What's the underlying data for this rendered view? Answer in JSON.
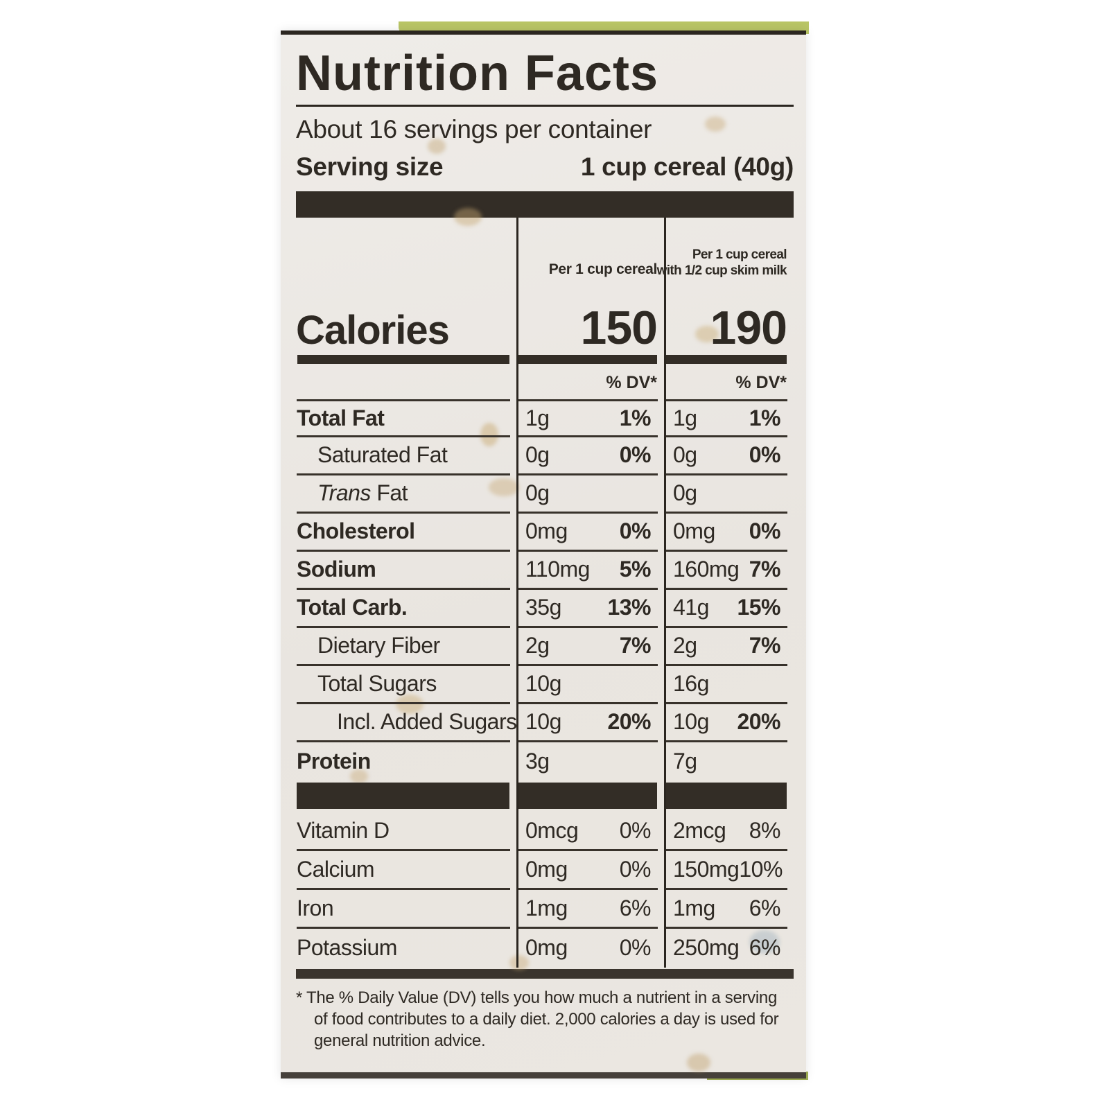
{
  "label": {
    "title": "Nutrition Facts",
    "servings_per_container": "About 16 servings per container",
    "serving_size_label": "Serving size",
    "serving_size_value": "1 cup cereal (40g)",
    "columns": {
      "col1_header": "Per 1 cup cereal",
      "col2_header_line1": "Per 1 cup cereal",
      "col2_header_line2": "with 1/2 cup skim milk",
      "dv_header": "% DV*"
    },
    "calories": {
      "label": "Calories",
      "col1_value": "150",
      "col2_value": "190"
    },
    "nutrients": [
      {
        "prefix": "",
        "label": "Total Fat",
        "col1_amount": "1g",
        "col1_dv": "1%",
        "col2_amount": "1g",
        "col2_dv": "1%"
      },
      {
        "prefix": "",
        "label": "Saturated Fat",
        "col1_amount": "0g",
        "col1_dv": "0%",
        "col2_amount": "0g",
        "col2_dv": "0%"
      },
      {
        "prefix": "Trans ",
        "label": "Fat",
        "col1_amount": "0g",
        "col1_dv": "",
        "col2_amount": "0g",
        "col2_dv": ""
      },
      {
        "prefix": "",
        "label": "Cholesterol",
        "col1_amount": "0mg",
        "col1_dv": "0%",
        "col2_amount": "0mg",
        "col2_dv": "0%"
      },
      {
        "prefix": "",
        "label": "Sodium",
        "col1_amount": "110mg",
        "col1_dv": "5%",
        "col2_amount": "160mg",
        "col2_dv": "7%"
      },
      {
        "prefix": "",
        "label": "Total Carb.",
        "col1_amount": "35g",
        "col1_dv": "13%",
        "col2_amount": "41g",
        "col2_dv": "15%"
      },
      {
        "prefix": "",
        "label": "Dietary Fiber",
        "col1_amount": "2g",
        "col1_dv": "7%",
        "col2_amount": "2g",
        "col2_dv": "7%"
      },
      {
        "prefix": "",
        "label": "Total Sugars",
        "col1_amount": "10g",
        "col1_dv": "",
        "col2_amount": "16g",
        "col2_dv": ""
      },
      {
        "prefix": "",
        "label": "Incl. Added Sugars",
        "col1_amount": "10g",
        "col1_dv": "20%",
        "col2_amount": "10g",
        "col2_dv": "20%"
      },
      {
        "prefix": "",
        "label": "Protein",
        "col1_amount": "3g",
        "col1_dv": "",
        "col2_amount": "7g",
        "col2_dv": ""
      }
    ],
    "vitamins": [
      {
        "label": "Vitamin D",
        "col1_amount": "0mcg",
        "col1_dv": "0%",
        "col2_amount": "2mcg",
        "col2_dv": "8%"
      },
      {
        "label": "Calcium",
        "col1_amount": "0mg",
        "col1_dv": "0%",
        "col2_amount": "150mg",
        "col2_dv": "10%"
      },
      {
        "label": "Iron",
        "col1_amount": "1mg",
        "col1_dv": "6%",
        "col2_amount": "1mg",
        "col2_dv": "6%"
      },
      {
        "label": "Potassium",
        "col1_amount": "0mg",
        "col1_dv": "0%",
        "col2_amount": "250mg",
        "col2_dv": "6%"
      }
    ],
    "footnote": "* The % Daily Value (DV) tells you how much a nutrient in a serving of food contributes to a daily diet. 2,000 calories a day is used for general nutrition advice."
  },
  "colors": {
    "ink": "#2b2620",
    "label_background": "#e9e5e0",
    "package_green": "#b9c566"
  }
}
